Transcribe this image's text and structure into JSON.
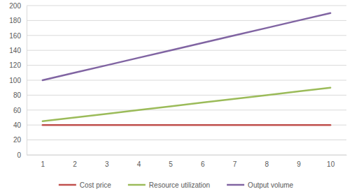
{
  "chart_data": {
    "type": "line",
    "categories": [
      "1",
      "2",
      "3",
      "4",
      "5",
      "6",
      "7",
      "8",
      "9",
      "10"
    ],
    "series": [
      {
        "name": "Cost price",
        "color": "#c0504d",
        "values": [
          40,
          40,
          40,
          40,
          40,
          40,
          40,
          40,
          40,
          40
        ]
      },
      {
        "name": "Resource utilization",
        "color": "#9bbb59",
        "values": [
          45,
          50,
          55,
          60,
          65,
          70,
          75,
          80,
          85,
          90
        ]
      },
      {
        "name": "Output volume",
        "color": "#8064a2",
        "values": [
          100,
          110,
          120,
          130,
          140,
          150,
          160,
          170,
          180,
          190
        ]
      }
    ],
    "ylim": [
      0,
      200
    ],
    "yticks": [
      0,
      20,
      40,
      60,
      80,
      100,
      120,
      140,
      160,
      180,
      200
    ],
    "grid": true,
    "legend": "bottom"
  }
}
